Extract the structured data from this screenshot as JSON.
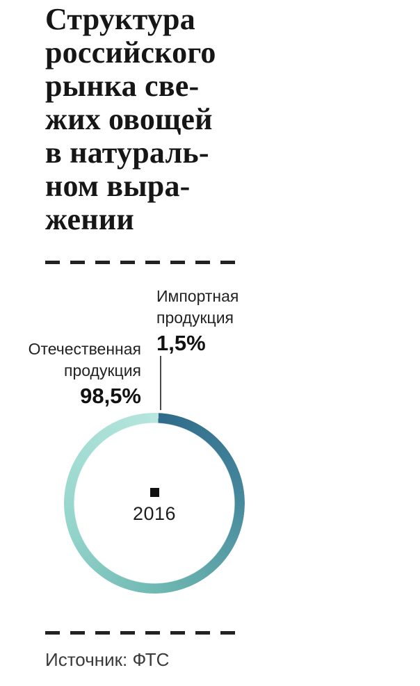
{
  "header": {
    "title": "Структура\nроссийского\nрынка све-\nжих овощей\nв натураль-\nном выра-\nжении"
  },
  "chart_data": {
    "type": "pie",
    "title": "Структура российского рынка свежих овощей в натуральном выражении",
    "segments": [
      {
        "label": "Отечественная продукция",
        "value": 98.5,
        "display_value": "98,5%",
        "color": "#6bb5b0"
      },
      {
        "label": "Импортная продукция",
        "value": 1.5,
        "display_value": "1,5%",
        "color": "#b9e7df"
      }
    ],
    "center_label": "2016",
    "legend_position": "outside-top",
    "ring_gradient": [
      "#2f6b8a",
      "#44859b",
      "#6bb5b0",
      "#93d4ca",
      "#b9e7df"
    ]
  },
  "source": {
    "text": "Источник: ФТС"
  },
  "colors": {
    "background": "#ffffff",
    "title_text": "#161616",
    "dash_line": "#222222",
    "pointer_line": "#4a4a4a",
    "center_square": "#111111"
  }
}
